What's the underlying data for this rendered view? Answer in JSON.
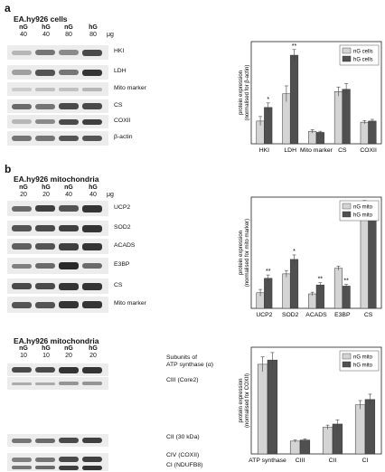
{
  "panel_a": {
    "label": "a",
    "title": "EA.hy926 cells",
    "lanes": [
      [
        "nG",
        "40"
      ],
      [
        "hG",
        "40"
      ],
      [
        "nG",
        "80"
      ],
      [
        "hG",
        "80"
      ]
    ],
    "unit": "μg",
    "blot_labels": [
      "HKI",
      "LDH",
      "Mito marker",
      "CS",
      "COXII",
      "β-actin"
    ]
  },
  "panel_b": {
    "label": "b",
    "title": "EA.hy926 mitochondria",
    "lanes": [
      [
        "nG",
        "20"
      ],
      [
        "hG",
        "20"
      ],
      [
        "nG",
        "40"
      ],
      [
        "hG",
        "40"
      ]
    ],
    "unit": "μg",
    "blot_labels": [
      "UCP2",
      "SOD2",
      "ACADS",
      "E3BP",
      "CS",
      "Mito marker"
    ]
  },
  "panel_c": {
    "title": "EA.hy926 mitochondria",
    "lanes": [
      [
        "nG",
        "10"
      ],
      [
        "hG",
        "10"
      ],
      [
        "nG",
        "20"
      ],
      [
        "hG",
        "20"
      ]
    ],
    "subunits_label": "Subunits of",
    "blot_labels": [
      "ATP synthase (α)",
      "CIII (Core2)",
      "CII (30 kDa)",
      "CIV (COXII)",
      "CI (NDUFB8)"
    ]
  },
  "colors": {
    "normal_glucose": "#d4d4d4",
    "high_glucose": "#505050",
    "axis": "#222222"
  },
  "chart_data": [
    {
      "type": "bar",
      "ylabel": "protein expression (normalised for β-actin)",
      "categories": [
        "HKI",
        "LDH",
        "Mito marker",
        "CS",
        "COXII"
      ],
      "ylim": [
        0,
        0.9
      ],
      "legend": "top-right",
      "series": [
        {
          "name": "nG cells",
          "values": [
            0.2,
            0.44,
            0.11,
            0.46,
            0.19
          ],
          "errors": [
            0.04,
            0.07,
            0.015,
            0.04,
            0.015
          ]
        },
        {
          "name": "hG cells",
          "values": [
            0.32,
            0.78,
            0.1,
            0.48,
            0.2
          ],
          "errors": [
            0.04,
            0.05,
            0.01,
            0.05,
            0.015
          ]
        }
      ],
      "annotations": [
        {
          "category": "HKI",
          "text": "*"
        },
        {
          "category": "LDH",
          "text": "**"
        }
      ]
    },
    {
      "type": "bar",
      "ylabel": "protein expression (normalised for mito marker)",
      "categories": [
        "UCP2",
        "SOD2",
        "ACADS",
        "E3BP",
        "CS"
      ],
      "ylim": [
        0,
        1.0
      ],
      "legend": "top-right",
      "series": [
        {
          "name": "nG mito",
          "values": [
            0.14,
            0.31,
            0.13,
            0.36,
            0.9
          ],
          "errors": [
            0.03,
            0.03,
            0.015,
            0.02,
            0.07
          ]
        },
        {
          "name": "hG mito",
          "values": [
            0.27,
            0.44,
            0.21,
            0.2,
            0.84
          ],
          "errors": [
            0.03,
            0.04,
            0.02,
            0.015,
            0.09
          ]
        }
      ],
      "annotations": [
        {
          "category": "UCP2",
          "text": "**"
        },
        {
          "category": "SOD2",
          "text": "*"
        },
        {
          "category": "ACADS",
          "text": "**"
        },
        {
          "category": "E3BP",
          "text": "**"
        }
      ]
    },
    {
      "type": "bar",
      "ylabel": "protein expression (normalised for COXII)",
      "categories": [
        "ATP synthase",
        "CIII",
        "CII",
        "CI"
      ],
      "ylim": [
        0,
        1.0
      ],
      "legend": "top-right",
      "series": [
        {
          "name": "nG mito",
          "values": [
            0.84,
            0.12,
            0.25,
            0.46
          ],
          "errors": [
            0.07,
            0.01,
            0.02,
            0.04
          ]
        },
        {
          "name": "hG mito",
          "values": [
            0.88,
            0.13,
            0.28,
            0.51
          ],
          "errors": [
            0.07,
            0.01,
            0.04,
            0.05
          ]
        }
      ],
      "annotations": []
    }
  ]
}
